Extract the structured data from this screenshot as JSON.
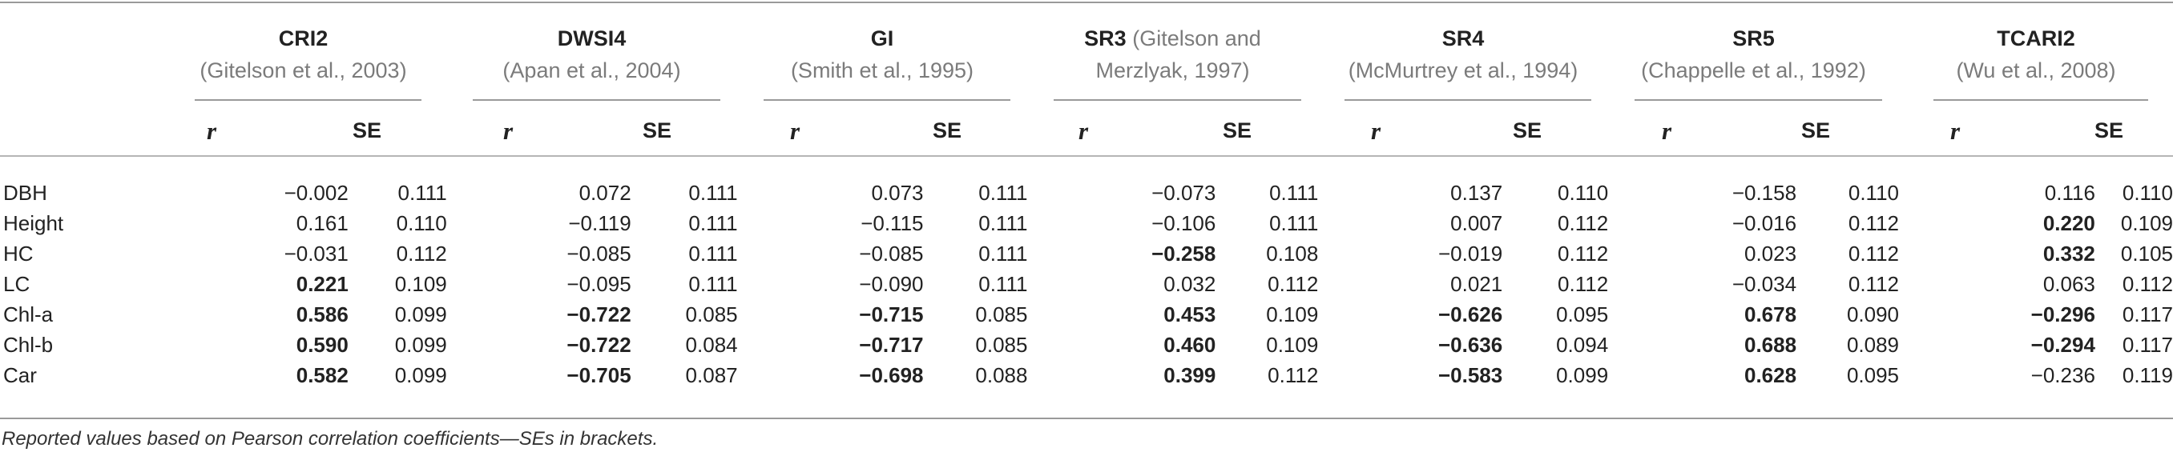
{
  "groups": [
    {
      "index": "CRI2",
      "ref_line1": "(Gitelson et al., 2003)",
      "ref_line2": ""
    },
    {
      "index": "DWSI4",
      "ref_line1": "(Apan et al., 2004)",
      "ref_line2": ""
    },
    {
      "index": "GI",
      "ref_line1": "(Smith et al., 1995)",
      "ref_line2": ""
    },
    {
      "index": "SR3",
      "ref_line1": "(Gitelson and",
      "ref_line2": "Merzlyak, 1997)"
    },
    {
      "index": "SR4",
      "ref_line1": "(McMurtrey et al., 1994)",
      "ref_line2": ""
    },
    {
      "index": "SR5",
      "ref_line1": "(Chappelle et al., 1992)",
      "ref_line2": ""
    },
    {
      "index": "TCARI2",
      "ref_line1": "(Wu et al., 2008)",
      "ref_line2": ""
    }
  ],
  "subheaders": {
    "r": "r",
    "se": "SE"
  },
  "rows": [
    {
      "name": "DBH",
      "cells": [
        {
          "v": "−0.002",
          "b": false
        },
        {
          "v": "0.111",
          "b": false
        },
        {
          "v": "0.072",
          "b": false
        },
        {
          "v": "0.111",
          "b": false
        },
        {
          "v": "0.073",
          "b": false
        },
        {
          "v": "0.111",
          "b": false
        },
        {
          "v": "−0.073",
          "b": false
        },
        {
          "v": "0.111",
          "b": false
        },
        {
          "v": "0.137",
          "b": false
        },
        {
          "v": "0.110",
          "b": false
        },
        {
          "v": "−0.158",
          "b": false
        },
        {
          "v": "0.110",
          "b": false
        },
        {
          "v": "0.116",
          "b": false
        },
        {
          "v": "0.110",
          "b": false
        }
      ]
    },
    {
      "name": "Height",
      "cells": [
        {
          "v": "0.161",
          "b": false
        },
        {
          "v": "0.110",
          "b": false
        },
        {
          "v": "−0.119",
          "b": false
        },
        {
          "v": "0.111",
          "b": false
        },
        {
          "v": "−0.115",
          "b": false
        },
        {
          "v": "0.111",
          "b": false
        },
        {
          "v": "−0.106",
          "b": false
        },
        {
          "v": "0.111",
          "b": false
        },
        {
          "v": "0.007",
          "b": false
        },
        {
          "v": "0.112",
          "b": false
        },
        {
          "v": "−0.016",
          "b": false
        },
        {
          "v": "0.112",
          "b": false
        },
        {
          "v": "0.220",
          "b": true
        },
        {
          "v": "0.109",
          "b": false
        }
      ]
    },
    {
      "name": "HC",
      "cells": [
        {
          "v": "−0.031",
          "b": false
        },
        {
          "v": "0.112",
          "b": false
        },
        {
          "v": "−0.085",
          "b": false
        },
        {
          "v": "0.111",
          "b": false
        },
        {
          "v": "−0.085",
          "b": false
        },
        {
          "v": "0.111",
          "b": false
        },
        {
          "v": "−0.258",
          "b": true
        },
        {
          "v": "0.108",
          "b": false
        },
        {
          "v": "−0.019",
          "b": false
        },
        {
          "v": "0.112",
          "b": false
        },
        {
          "v": "0.023",
          "b": false
        },
        {
          "v": "0.112",
          "b": false
        },
        {
          "v": "0.332",
          "b": true
        },
        {
          "v": "0.105",
          "b": false
        }
      ]
    },
    {
      "name": "LC",
      "cells": [
        {
          "v": "0.221",
          "b": true
        },
        {
          "v": "0.109",
          "b": false
        },
        {
          "v": "−0.095",
          "b": false
        },
        {
          "v": "0.111",
          "b": false
        },
        {
          "v": "−0.090",
          "b": false
        },
        {
          "v": "0.111",
          "b": false
        },
        {
          "v": "0.032",
          "b": false
        },
        {
          "v": "0.112",
          "b": false
        },
        {
          "v": "0.021",
          "b": false
        },
        {
          "v": "0.112",
          "b": false
        },
        {
          "v": "−0.034",
          "b": false
        },
        {
          "v": "0.112",
          "b": false
        },
        {
          "v": "0.063",
          "b": false
        },
        {
          "v": "0.112",
          "b": false
        }
      ]
    },
    {
      "name": "Chl-a",
      "cells": [
        {
          "v": "0.586",
          "b": true
        },
        {
          "v": "0.099",
          "b": false
        },
        {
          "v": "−0.722",
          "b": true
        },
        {
          "v": "0.085",
          "b": false
        },
        {
          "v": "−0.715",
          "b": true
        },
        {
          "v": "0.085",
          "b": false
        },
        {
          "v": "0.453",
          "b": true
        },
        {
          "v": "0.109",
          "b": false
        },
        {
          "v": "−0.626",
          "b": true
        },
        {
          "v": "0.095",
          "b": false
        },
        {
          "v": "0.678",
          "b": true
        },
        {
          "v": "0.090",
          "b": false
        },
        {
          "v": "−0.296",
          "b": true
        },
        {
          "v": "0.117",
          "b": false
        }
      ]
    },
    {
      "name": "Chl-b",
      "cells": [
        {
          "v": "0.590",
          "b": true
        },
        {
          "v": "0.099",
          "b": false
        },
        {
          "v": "−0.722",
          "b": true
        },
        {
          "v": "0.084",
          "b": false
        },
        {
          "v": "−0.717",
          "b": true
        },
        {
          "v": "0.085",
          "b": false
        },
        {
          "v": "0.460",
          "b": true
        },
        {
          "v": "0.109",
          "b": false
        },
        {
          "v": "−0.636",
          "b": true
        },
        {
          "v": "0.094",
          "b": false
        },
        {
          "v": "0.688",
          "b": true
        },
        {
          "v": "0.089",
          "b": false
        },
        {
          "v": "−0.294",
          "b": true
        },
        {
          "v": "0.117",
          "b": false
        }
      ]
    },
    {
      "name": "Car",
      "cells": [
        {
          "v": "0.582",
          "b": true
        },
        {
          "v": "0.099",
          "b": false
        },
        {
          "v": "−0.705",
          "b": true
        },
        {
          "v": "0.087",
          "b": false
        },
        {
          "v": "−0.698",
          "b": true
        },
        {
          "v": "0.088",
          "b": false
        },
        {
          "v": "0.399",
          "b": true
        },
        {
          "v": "0.112",
          "b": false
        },
        {
          "v": "−0.583",
          "b": true
        },
        {
          "v": "0.099",
          "b": false
        },
        {
          "v": "0.628",
          "b": true
        },
        {
          "v": "0.095",
          "b": false
        },
        {
          "v": "−0.236",
          "b": false
        },
        {
          "v": "0.119",
          "b": false
        }
      ]
    }
  ],
  "footnote": "Reported values based on Pearson correlation coefficients—SEs in brackets."
}
